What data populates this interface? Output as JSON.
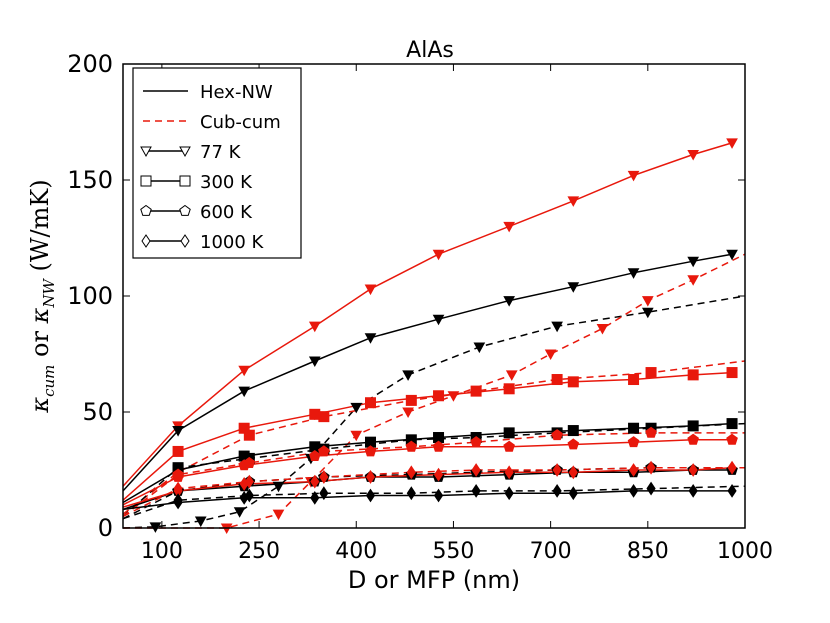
{
  "chart_data": {
    "type": "line",
    "title": "AlAs",
    "xlabel": "D or MFP (nm)",
    "ylabel": "κ_cum or κ_NW (W/mK)",
    "xlim": [
      40,
      1000
    ],
    "ylim": [
      0,
      200
    ],
    "xticks": [
      100,
      250,
      400,
      550,
      700,
      850,
      1000
    ],
    "yticks": [
      0,
      50,
      100,
      150,
      200
    ],
    "colors": {
      "hex": "#000000",
      "cub": "#e8180c"
    },
    "legend": {
      "placement": "top-left",
      "entries": [
        {
          "label": "Hex-NW",
          "style": "solid-black"
        },
        {
          "label": "Cub-cum",
          "style": "dashed-red"
        },
        {
          "label": "77 K",
          "marker": "triangle-down"
        },
        {
          "label": "300 K",
          "marker": "square"
        },
        {
          "label": "600 K",
          "marker": "pentagon"
        },
        {
          "label": "1000 K",
          "marker": "diamond"
        }
      ]
    },
    "series": [
      {
        "color": "#e8180c",
        "dash": false,
        "marker": "triangle-down",
        "x": [
          40,
          125,
          227,
          336,
          422,
          527,
          636,
          735,
          828,
          920,
          980
        ],
        "y": [
          18,
          44,
          68,
          87,
          103,
          118,
          130,
          141,
          152,
          161,
          166
        ]
      },
      {
        "color": "#000000",
        "dash": false,
        "marker": "triangle-down",
        "x": [
          40,
          125,
          227,
          336,
          422,
          527,
          636,
          735,
          828,
          920,
          980
        ],
        "y": [
          16,
          42,
          59,
          72,
          82,
          90,
          98,
          104,
          110,
          115,
          118
        ]
      },
      {
        "color": "#000000",
        "dash": true,
        "marker": "triangle-down",
        "x": [
          40,
          90,
          160,
          220,
          280,
          330,
          400,
          480,
          590,
          710,
          850,
          1000
        ],
        "y": [
          0,
          0.5,
          3,
          7,
          18,
          30,
          52,
          66,
          78,
          87,
          93,
          100
        ]
      },
      {
        "color": "#e8180c",
        "dash": true,
        "marker": "triangle-down",
        "x": [
          40,
          200,
          280,
          330,
          400,
          480,
          550,
          640,
          700,
          780,
          850,
          920,
          1000
        ],
        "y": [
          0,
          0,
          6,
          20,
          40,
          50,
          57,
          66,
          75,
          86,
          98,
          107,
          118
        ]
      },
      {
        "color": "#e8180c",
        "dash": false,
        "marker": "square",
        "x": [
          40,
          125,
          227,
          336,
          422,
          527,
          636,
          735,
          828,
          920,
          980
        ],
        "y": [
          12,
          33,
          43,
          49,
          54,
          57,
          60,
          63,
          64,
          66,
          67
        ]
      },
      {
        "color": "#e8180c",
        "dash": true,
        "marker": "square",
        "x": [
          40,
          125,
          235,
          350,
          485,
          585,
          710,
          855,
          1000
        ],
        "y": [
          6,
          24,
          40,
          48,
          55,
          59,
          64,
          67,
          72
        ]
      },
      {
        "color": "#000000",
        "dash": false,
        "marker": "square",
        "x": [
          40,
          125,
          227,
          336,
          422,
          527,
          636,
          735,
          828,
          920,
          980
        ],
        "y": [
          11,
          25,
          31,
          35,
          37,
          39,
          41,
          42,
          43,
          44,
          45
        ]
      },
      {
        "color": "#000000",
        "dash": true,
        "marker": "square",
        "x": [
          40,
          125,
          235,
          350,
          485,
          585,
          710,
          855,
          1000
        ],
        "y": [
          5,
          26,
          30,
          34,
          38,
          39,
          41,
          43,
          45
        ]
      },
      {
        "color": "#e8180c",
        "dash": false,
        "marker": "pentagon",
        "x": [
          40,
          125,
          227,
          336,
          422,
          527,
          636,
          735,
          828,
          920,
          980
        ],
        "y": [
          10,
          22,
          27,
          31,
          33,
          35,
          35,
          36,
          37,
          38,
          38
        ]
      },
      {
        "color": "#e8180c",
        "dash": true,
        "marker": "pentagon",
        "x": [
          40,
          125,
          235,
          350,
          485,
          585,
          710,
          855,
          1000
        ],
        "y": [
          5,
          23,
          28,
          33,
          35,
          37,
          40,
          41,
          41
        ]
      },
      {
        "color": "#000000",
        "dash": false,
        "marker": "pentagon",
        "x": [
          40,
          125,
          227,
          336,
          422,
          527,
          636,
          735,
          828,
          920,
          980
        ],
        "y": [
          8,
          16,
          18,
          20,
          22,
          22,
          23,
          24,
          24,
          25,
          25
        ]
      },
      {
        "color": "#000000",
        "dash": true,
        "marker": "pentagon",
        "x": [
          40,
          125,
          235,
          350,
          485,
          585,
          710,
          855,
          1000
        ],
        "y": [
          4,
          16,
          20,
          22,
          23,
          24,
          25,
          26,
          26
        ]
      },
      {
        "color": "#e8180c",
        "dash": false,
        "marker": "diamond",
        "x": [
          40,
          125,
          227,
          336,
          422,
          527,
          636,
          735,
          828,
          920,
          980
        ],
        "y": [
          9,
          16,
          19,
          20,
          22,
          23,
          24,
          24,
          25,
          25,
          26
        ]
      },
      {
        "color": "#e8180c",
        "dash": true,
        "marker": "diamond",
        "x": [
          40,
          125,
          235,
          350,
          485,
          585,
          710,
          855,
          1000
        ],
        "y": [
          5,
          17,
          20,
          22,
          24,
          25,
          25,
          26,
          26
        ]
      },
      {
        "color": "#000000",
        "dash": false,
        "marker": "diamond",
        "x": [
          40,
          125,
          227,
          336,
          422,
          527,
          636,
          735,
          828,
          920,
          980
        ],
        "y": [
          8,
          11,
          13,
          13,
          14,
          14,
          15,
          15,
          16,
          16,
          16
        ]
      },
      {
        "color": "#000000",
        "dash": true,
        "marker": "diamond",
        "x": [
          40,
          125,
          235,
          350,
          485,
          585,
          710,
          855,
          1000
        ],
        "y": [
          4,
          12,
          14,
          15,
          15,
          16,
          16,
          17,
          18
        ]
      }
    ]
  }
}
